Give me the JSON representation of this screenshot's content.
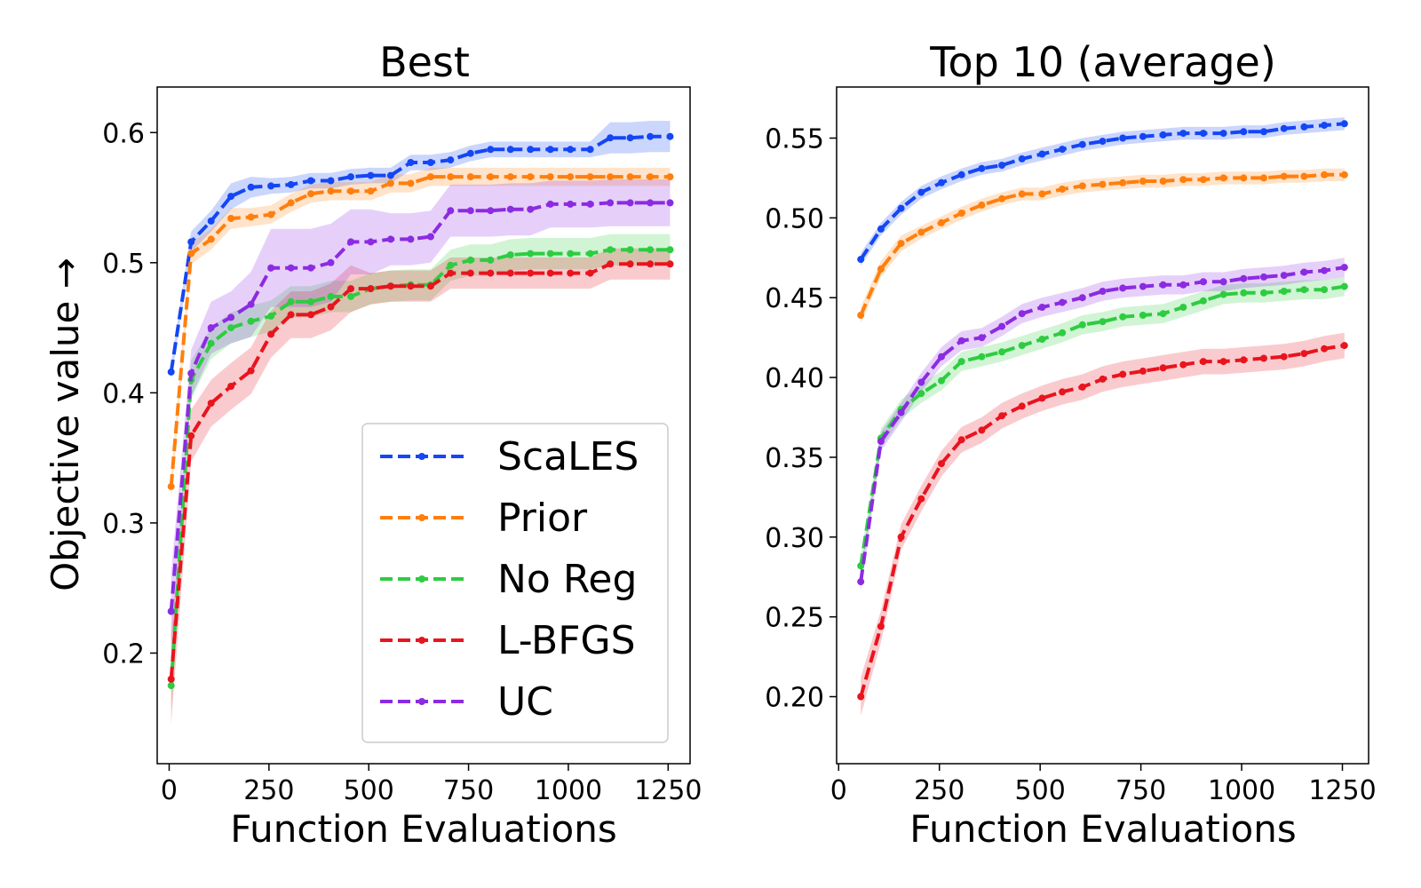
{
  "chart_data": [
    {
      "type": "line",
      "title": "Best",
      "xlabel": "Function Evaluations",
      "ylabel": "Objective value →",
      "xlim": [
        -30,
        1305
      ],
      "ylim": [
        0.115,
        0.635
      ],
      "xticks": [
        0,
        250,
        500,
        750,
        1000,
        1250
      ],
      "xtick_labels": [
        "0",
        "250",
        "500",
        "750",
        "1000",
        "1250"
      ],
      "yticks": [
        0.2,
        0.3,
        0.4,
        0.5,
        0.6
      ],
      "ytick_labels": [
        "0.2",
        "0.3",
        "0.4",
        "0.5",
        "0.6"
      ],
      "legend": {
        "position": "lower-right",
        "entries": [
          "ScaLES",
          "Prior",
          "No Reg",
          "L-BFGS",
          "UC"
        ]
      },
      "x": [
        5,
        55,
        105,
        155,
        205,
        255,
        305,
        355,
        405,
        455,
        505,
        555,
        605,
        655,
        705,
        755,
        805,
        855,
        905,
        955,
        1005,
        1055,
        1105,
        1155,
        1205,
        1255
      ],
      "series": [
        {
          "name": "ScaLES",
          "color": "#1446f5",
          "band": 0.006,
          "values": [
            0.416,
            0.516,
            0.532,
            0.551,
            0.558,
            0.559,
            0.56,
            0.563,
            0.563,
            0.566,
            0.567,
            0.567,
            0.577,
            0.577,
            0.579,
            0.584,
            0.587,
            0.587,
            0.587,
            0.587,
            0.587,
            0.587,
            0.596,
            0.596,
            0.597,
            0.597
          ],
          "band_values": [
            0.006,
            0.008,
            0.008,
            0.01,
            0.008,
            0.006,
            0.006,
            0.006,
            0.006,
            0.006,
            0.006,
            0.006,
            0.006,
            0.006,
            0.006,
            0.006,
            0.006,
            0.006,
            0.006,
            0.006,
            0.006,
            0.006,
            0.012,
            0.012,
            0.012,
            0.012
          ]
        },
        {
          "name": "Prior",
          "color": "#ff7f0e",
          "band": 0.006,
          "values": [
            0.328,
            0.507,
            0.518,
            0.534,
            0.535,
            0.537,
            0.546,
            0.553,
            0.555,
            0.555,
            0.555,
            0.561,
            0.561,
            0.566,
            0.566,
            0.566,
            0.566,
            0.566,
            0.566,
            0.566,
            0.566,
            0.566,
            0.566,
            0.566,
            0.566,
            0.566
          ],
          "band_values": [
            0.01,
            0.008,
            0.008,
            0.008,
            0.007,
            0.007,
            0.007,
            0.007,
            0.007,
            0.007,
            0.007,
            0.007,
            0.007,
            0.007,
            0.007,
            0.007,
            0.007,
            0.007,
            0.007,
            0.007,
            0.007,
            0.007,
            0.007,
            0.007,
            0.007,
            0.007
          ]
        },
        {
          "name": "No Reg",
          "color": "#2ecc40",
          "band": 0.01,
          "values": [
            0.175,
            0.41,
            0.438,
            0.45,
            0.455,
            0.459,
            0.47,
            0.47,
            0.474,
            0.474,
            0.48,
            0.482,
            0.483,
            0.483,
            0.498,
            0.502,
            0.502,
            0.506,
            0.507,
            0.507,
            0.507,
            0.507,
            0.51,
            0.51,
            0.51,
            0.51
          ],
          "band_values": [
            0.02,
            0.015,
            0.012,
            0.012,
            0.012,
            0.012,
            0.012,
            0.012,
            0.012,
            0.012,
            0.012,
            0.012,
            0.012,
            0.012,
            0.012,
            0.012,
            0.012,
            0.012,
            0.012,
            0.012,
            0.012,
            0.012,
            0.012,
            0.012,
            0.012,
            0.012
          ]
        },
        {
          "name": "L-BFGS",
          "color": "#e8141e",
          "band": 0.012,
          "values": [
            0.18,
            0.367,
            0.392,
            0.405,
            0.417,
            0.445,
            0.46,
            0.46,
            0.466,
            0.48,
            0.48,
            0.482,
            0.482,
            0.482,
            0.492,
            0.492,
            0.492,
            0.492,
            0.492,
            0.492,
            0.492,
            0.492,
            0.499,
            0.499,
            0.499,
            0.499
          ],
          "band_values": [
            0.035,
            0.02,
            0.018,
            0.018,
            0.018,
            0.018,
            0.018,
            0.018,
            0.018,
            0.018,
            0.012,
            0.012,
            0.012,
            0.012,
            0.012,
            0.012,
            0.012,
            0.012,
            0.012,
            0.012,
            0.012,
            0.012,
            0.012,
            0.012,
            0.012,
            0.012
          ]
        },
        {
          "name": "UC",
          "color": "#8b2be2",
          "band": 0.015,
          "values": [
            0.232,
            0.415,
            0.45,
            0.458,
            0.468,
            0.496,
            0.496,
            0.496,
            0.5,
            0.516,
            0.516,
            0.518,
            0.518,
            0.52,
            0.54,
            0.54,
            0.54,
            0.541,
            0.541,
            0.545,
            0.545,
            0.545,
            0.546,
            0.546,
            0.546,
            0.546
          ],
          "band_values": [
            0.03,
            0.018,
            0.02,
            0.02,
            0.025,
            0.03,
            0.03,
            0.03,
            0.03,
            0.025,
            0.025,
            0.02,
            0.02,
            0.02,
            0.02,
            0.02,
            0.02,
            0.02,
            0.02,
            0.018,
            0.018,
            0.018,
            0.018,
            0.018,
            0.018,
            0.018
          ]
        }
      ]
    },
    {
      "type": "line",
      "title": "Top 10 (average)",
      "xlabel": "Function Evaluations",
      "ylabel": "",
      "xlim": [
        -5,
        1315
      ],
      "ylim": [
        0.158,
        0.582
      ],
      "xticks": [
        0,
        250,
        500,
        750,
        1000,
        1250
      ],
      "xtick_labels": [
        "0",
        "250",
        "500",
        "750",
        "1000",
        "1250"
      ],
      "yticks": [
        0.2,
        0.25,
        0.3,
        0.35,
        0.4,
        0.45,
        0.5,
        0.55
      ],
      "ytick_labels": [
        "0.20",
        "0.25",
        "0.30",
        "0.35",
        "0.40",
        "0.45",
        "0.50",
        "0.55"
      ],
      "x": [
        55,
        105,
        155,
        205,
        255,
        305,
        355,
        405,
        455,
        505,
        555,
        605,
        655,
        705,
        755,
        805,
        855,
        905,
        955,
        1005,
        1055,
        1105,
        1155,
        1205,
        1255
      ],
      "series": [
        {
          "name": "ScaLES",
          "color": "#1446f5",
          "values": [
            0.474,
            0.493,
            0.506,
            0.516,
            0.522,
            0.527,
            0.531,
            0.533,
            0.537,
            0.54,
            0.543,
            0.546,
            0.548,
            0.55,
            0.551,
            0.552,
            0.553,
            0.553,
            0.553,
            0.554,
            0.554,
            0.556,
            0.557,
            0.558,
            0.559
          ],
          "band_values": [
            0.004,
            0.004,
            0.004,
            0.004,
            0.004,
            0.004,
            0.004,
            0.004,
            0.004,
            0.004,
            0.004,
            0.004,
            0.004,
            0.004,
            0.004,
            0.004,
            0.004,
            0.004,
            0.004,
            0.004,
            0.004,
            0.004,
            0.004,
            0.004,
            0.004
          ]
        },
        {
          "name": "Prior",
          "color": "#ff7f0e",
          "values": [
            0.439,
            0.468,
            0.484,
            0.491,
            0.497,
            0.503,
            0.508,
            0.512,
            0.515,
            0.515,
            0.518,
            0.52,
            0.521,
            0.522,
            0.523,
            0.523,
            0.524,
            0.524,
            0.525,
            0.525,
            0.525,
            0.526,
            0.526,
            0.527,
            0.527
          ],
          "band_values": [
            0.005,
            0.005,
            0.005,
            0.004,
            0.004,
            0.004,
            0.004,
            0.004,
            0.004,
            0.004,
            0.004,
            0.004,
            0.004,
            0.004,
            0.004,
            0.004,
            0.004,
            0.004,
            0.004,
            0.004,
            0.004,
            0.004,
            0.004,
            0.004,
            0.004
          ]
        },
        {
          "name": "No Reg",
          "color": "#2ecc40",
          "values": [
            0.282,
            0.362,
            0.38,
            0.39,
            0.398,
            0.41,
            0.413,
            0.416,
            0.42,
            0.424,
            0.428,
            0.433,
            0.435,
            0.438,
            0.439,
            0.44,
            0.444,
            0.448,
            0.452,
            0.453,
            0.453,
            0.454,
            0.455,
            0.455,
            0.457
          ],
          "band_values": [
            0.006,
            0.006,
            0.006,
            0.006,
            0.006,
            0.006,
            0.006,
            0.006,
            0.006,
            0.006,
            0.006,
            0.006,
            0.006,
            0.006,
            0.006,
            0.006,
            0.006,
            0.006,
            0.006,
            0.006,
            0.006,
            0.006,
            0.006,
            0.006,
            0.006
          ]
        },
        {
          "name": "L-BFGS",
          "color": "#e8141e",
          "values": [
            0.2,
            0.244,
            0.3,
            0.324,
            0.346,
            0.361,
            0.367,
            0.376,
            0.382,
            0.387,
            0.391,
            0.394,
            0.399,
            0.402,
            0.404,
            0.406,
            0.408,
            0.41,
            0.41,
            0.411,
            0.412,
            0.413,
            0.415,
            0.418,
            0.42
          ],
          "band_values": [
            0.012,
            0.01,
            0.008,
            0.008,
            0.008,
            0.008,
            0.008,
            0.008,
            0.008,
            0.008,
            0.008,
            0.008,
            0.008,
            0.008,
            0.008,
            0.008,
            0.008,
            0.008,
            0.008,
            0.008,
            0.008,
            0.008,
            0.008,
            0.008,
            0.008
          ]
        },
        {
          "name": "UC",
          "color": "#8b2be2",
          "values": [
            0.272,
            0.36,
            0.378,
            0.397,
            0.413,
            0.423,
            0.425,
            0.432,
            0.44,
            0.444,
            0.447,
            0.45,
            0.454,
            0.456,
            0.457,
            0.458,
            0.458,
            0.46,
            0.46,
            0.462,
            0.463,
            0.464,
            0.466,
            0.467,
            0.469
          ],
          "band_values": [
            0.006,
            0.006,
            0.006,
            0.006,
            0.006,
            0.006,
            0.006,
            0.006,
            0.006,
            0.006,
            0.006,
            0.006,
            0.006,
            0.006,
            0.006,
            0.006,
            0.006,
            0.006,
            0.006,
            0.006,
            0.006,
            0.006,
            0.006,
            0.006,
            0.006
          ]
        }
      ]
    }
  ]
}
